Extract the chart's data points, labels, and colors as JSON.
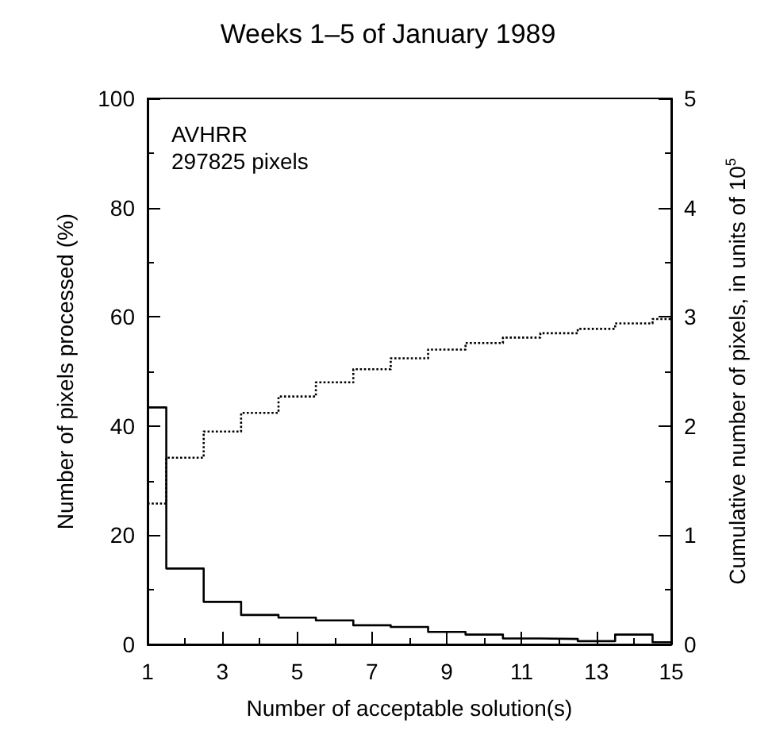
{
  "chart_data": {
    "type": "histogram",
    "title": "Weeks 1–5 of January 1989",
    "xlabel": "Number of acceptable solution(s)",
    "ylabel": "Number of pixels processed (%)",
    "y2label": "Cumulative number of pixels, in units of 10$^{5}$",
    "bins": [
      1,
      1.5,
      2.5,
      3.5,
      4.5,
      5.5,
      6.5,
      7.5,
      8.5,
      9.5,
      10.5,
      11.5,
      12.5,
      13.5,
      14.5,
      15
    ],
    "series": [
      {
        "color": "#000000",
        "line_style": "solid",
        "values": [
          43.4,
          13.9,
          7.8,
          5.4,
          4.9,
          4.4,
          3.5,
          3.2,
          2.3,
          1.8,
          1.1,
          1.0,
          0.6,
          1.8,
          0.4
        ]
      },
      {
        "color": "#000000",
        "line_style": "dotted",
        "axis": "y2",
        "values": [
          1.29,
          1.71,
          1.95,
          2.12,
          2.27,
          2.4,
          2.52,
          2.62,
          2.7,
          2.76,
          2.81,
          2.85,
          2.89,
          2.94,
          2.98
        ]
      }
    ],
    "xlim": [
      1,
      15
    ],
    "xticks": [
      1,
      3,
      5,
      7,
      9,
      11,
      13,
      15
    ],
    "ylim": [
      0,
      100
    ],
    "yticks": [
      0,
      20,
      40,
      60,
      80,
      100
    ],
    "y2lim": [
      0,
      5
    ],
    "y2ticks": [
      0,
      1,
      2,
      3,
      4,
      5
    ],
    "annotations": [
      "AVHRR",
      "297825 pixels"
    ],
    "grid": false
  }
}
